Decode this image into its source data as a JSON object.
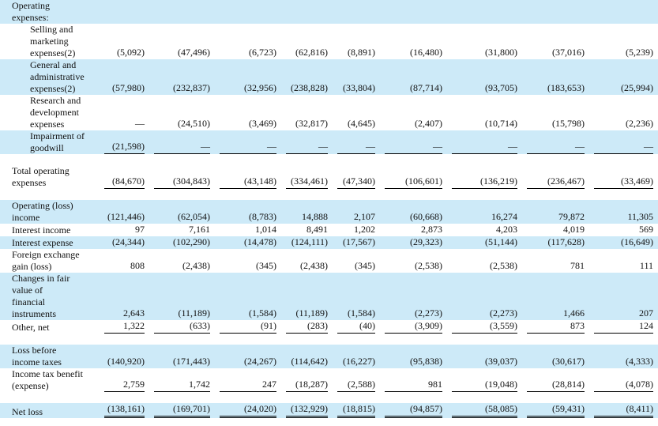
{
  "rows": [
    {
      "label": [
        "Operating",
        "expenses:"
      ],
      "values": []
    },
    {
      "label": [
        "Selling and",
        "marketing",
        "expenses(2)"
      ],
      "values": [
        "(5,092)",
        "(47,496)",
        "(6,723)",
        "(62,816)",
        "(8,891)",
        "(16,480)",
        "(31,800)",
        "(37,016)",
        "(5,239)"
      ]
    },
    {
      "label": [
        "General and",
        "administrative",
        "expenses(2)"
      ],
      "values": [
        "(57,980)",
        "(232,837)",
        "(32,956)",
        "(238,828)",
        "(33,804)",
        "(87,714)",
        "(93,705)",
        "(183,653)",
        "(25,994)"
      ]
    },
    {
      "label": [
        "Research and",
        "development",
        "expenses"
      ],
      "values": [
        "—",
        "(24,510)",
        "(3,469)",
        "(32,817)",
        "(4,645)",
        "(2,407)",
        "(10,714)",
        "(15,798)",
        "(2,236)"
      ]
    },
    {
      "label": [
        "Impairment of",
        "goodwill"
      ],
      "values": [
        "(21,598)",
        "—",
        "—",
        "—",
        "—",
        "—",
        "—",
        "—",
        "—"
      ]
    },
    {
      "label": [
        "Total operating",
        "expenses"
      ],
      "values": [
        "(84,670)",
        "(304,843)",
        "(43,148)",
        "(334,461)",
        "(47,340)",
        "(106,601)",
        "(136,219)",
        "(236,467)",
        "(33,469)"
      ]
    },
    {
      "label": [
        "Operating (loss)",
        "income"
      ],
      "values": [
        "(121,446)",
        "(62,054)",
        "(8,783)",
        "14,888",
        "2,107",
        "(60,668)",
        "16,274",
        "79,872",
        "11,305"
      ]
    },
    {
      "label": [
        "Interest income"
      ],
      "values": [
        "97",
        "7,161",
        "1,014",
        "8,491",
        "1,202",
        "2,873",
        "4,203",
        "4,019",
        "569"
      ]
    },
    {
      "label": [
        "Interest expense"
      ],
      "values": [
        "(24,344)",
        "(102,290)",
        "(14,478)",
        "(124,111)",
        "(17,567)",
        "(29,323)",
        "(51,144)",
        "(117,628)",
        "(16,649)"
      ]
    },
    {
      "label": [
        "Foreign exchange",
        "gain (loss)"
      ],
      "values": [
        "808",
        "(2,438)",
        "(345)",
        "(2,438)",
        "(345)",
        "(2,538)",
        "(2,538)",
        "781",
        "111"
      ]
    },
    {
      "label": [
        "Changes in fair",
        "value of",
        "financial",
        "instruments"
      ],
      "values": [
        "2,643",
        "(11,189)",
        "(1,584)",
        "(11,189)",
        "(1,584)",
        "(2,273)",
        "(2,273)",
        "1,466",
        "207"
      ]
    },
    {
      "label": [
        "Other, net"
      ],
      "values": [
        "1,322",
        "(633)",
        "(91)",
        "(283)",
        "(40)",
        "(3,909)",
        "(3,559)",
        "873",
        "124"
      ]
    },
    {
      "label": [
        "Loss before",
        "income taxes"
      ],
      "values": [
        "(140,920)",
        "(171,443)",
        "(24,267)",
        "(114,642)",
        "(16,227)",
        "(95,838)",
        "(39,037)",
        "(30,617)",
        "(4,333)"
      ]
    },
    {
      "label": [
        "Income tax benefit",
        "(expense)"
      ],
      "values": [
        "2,759",
        "1,742",
        "247",
        "(18,287)",
        "(2,588)",
        "981",
        "(19,048)",
        "(28,814)",
        "(4,078)"
      ]
    },
    {
      "label": [
        "Net loss"
      ],
      "values": [
        "(138,161)",
        "(169,701)",
        "(24,020)",
        "(132,929)",
        "(18,815)",
        "(94,857)",
        "(58,085)",
        "(59,431)",
        "(8,411)"
      ]
    }
  ]
}
